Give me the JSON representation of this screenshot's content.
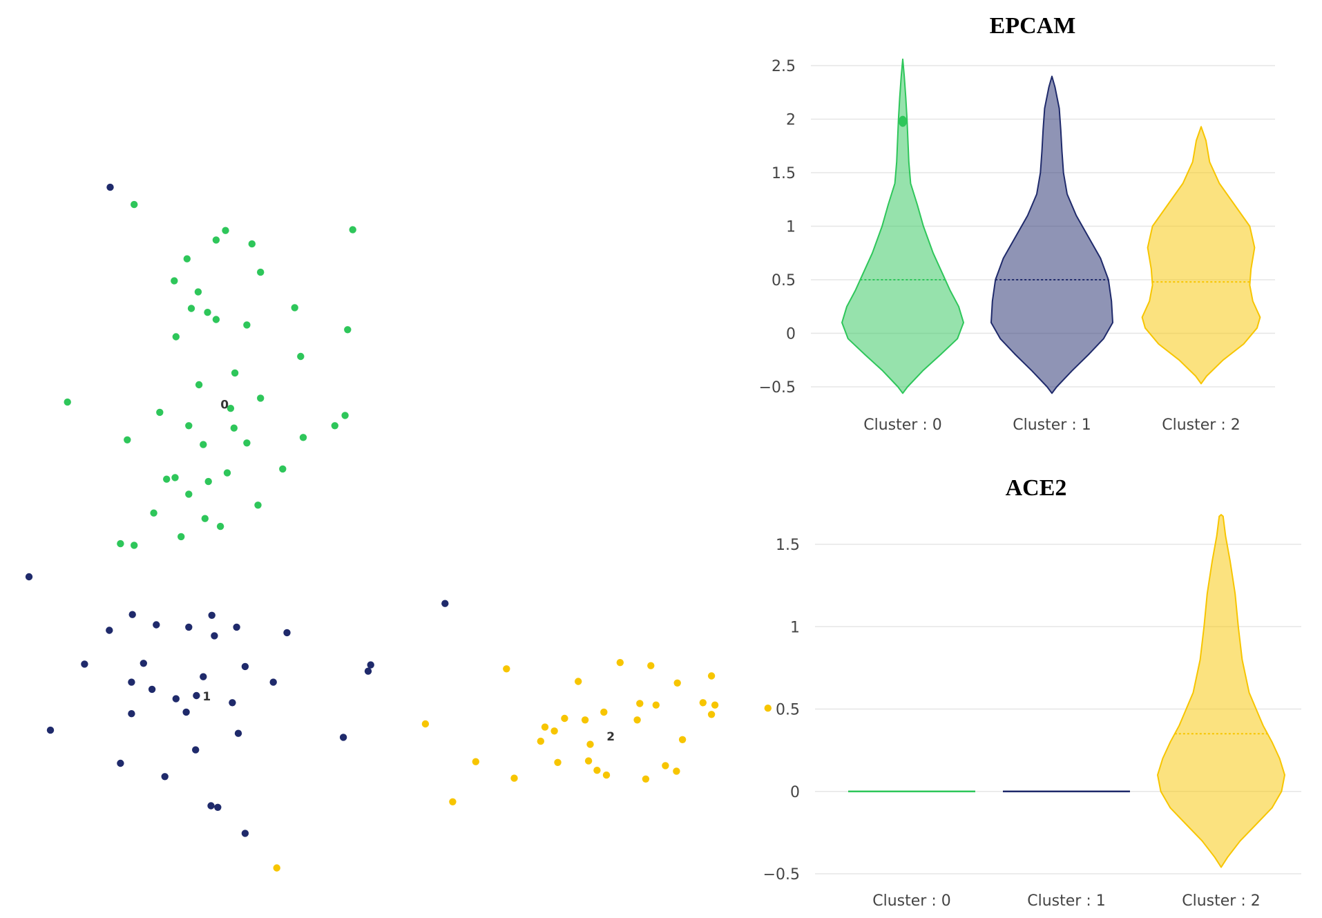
{
  "chart_data": [
    {
      "type": "scatter",
      "title": "",
      "xlabel": "",
      "ylabel": "",
      "grid": false,
      "xlim": [
        0,
        900
      ],
      "ylim": [
        0,
        1020
      ],
      "colors": {
        "0": "#2ec65a",
        "1": "#1f2a6b",
        "2": "#f7c500"
      },
      "cluster_labels": [
        {
          "text": "0",
          "x": 263,
          "y": 607
        },
        {
          "text": "1",
          "x": 242,
          "y": 236
        },
        {
          "text": "2",
          "x": 715,
          "y": 185
        }
      ],
      "series": [
        {
          "cluster": "0",
          "points": [
            [
              157,
              861
            ],
            [
              264,
              828
            ],
            [
              413,
              829
            ],
            [
              253,
              816
            ],
            [
              295,
              811
            ],
            [
              219,
              792
            ],
            [
              305,
              775
            ],
            [
              204,
              764
            ],
            [
              232,
              750
            ],
            [
              224,
              729
            ],
            [
              243,
              724
            ],
            [
              253,
              715
            ],
            [
              345,
              730
            ],
            [
              289,
              708
            ],
            [
              206,
              693
            ],
            [
              407,
              702
            ],
            [
              352,
              668
            ],
            [
              275,
              647
            ],
            [
              233,
              632
            ],
            [
              305,
              615
            ],
            [
              79,
              610
            ],
            [
              270,
              602
            ],
            [
              187,
              597
            ],
            [
              404,
              593
            ],
            [
              221,
              580
            ],
            [
              274,
              577
            ],
            [
              392,
              580
            ],
            [
              149,
              562
            ],
            [
              355,
              565
            ],
            [
              238,
              556
            ],
            [
              289,
              558
            ],
            [
              331,
              525
            ],
            [
              266,
              520
            ],
            [
              195,
              512
            ],
            [
              205,
              514
            ],
            [
              244,
              509
            ],
            [
              221,
              493
            ],
            [
              302,
              479
            ],
            [
              180,
              469
            ],
            [
              240,
              462
            ],
            [
              258,
              452
            ],
            [
              212,
              439
            ],
            [
              141,
              430
            ],
            [
              157,
              428
            ]
          ]
        },
        {
          "cluster": "1",
          "points": [
            [
              129,
              883
            ],
            [
              34,
              388
            ],
            [
              521,
              354
            ],
            [
              155,
              340
            ],
            [
              248,
              339
            ],
            [
              183,
              327
            ],
            [
              221,
              324
            ],
            [
              277,
              324
            ],
            [
              128,
              320
            ],
            [
              336,
              317
            ],
            [
              251,
              313
            ],
            [
              99,
              277
            ],
            [
              168,
              278
            ],
            [
              287,
              274
            ],
            [
              434,
              276
            ],
            [
              431,
              268
            ],
            [
              238,
              261
            ],
            [
              320,
              254
            ],
            [
              154,
              254
            ],
            [
              178,
              245
            ],
            [
              206,
              233
            ],
            [
              230,
              237
            ],
            [
              272,
              228
            ],
            [
              218,
              216
            ],
            [
              154,
              214
            ],
            [
              59,
              193
            ],
            [
              279,
              189
            ],
            [
              402,
              184
            ],
            [
              229,
              168
            ],
            [
              141,
              151
            ],
            [
              193,
              134
            ],
            [
              247,
              97
            ],
            [
              255,
              95
            ],
            [
              287,
              62
            ]
          ]
        },
        {
          "cluster": "2",
          "points": [
            [
              593,
              271
            ],
            [
              726,
              279
            ],
            [
              762,
              275
            ],
            [
              833,
              262
            ],
            [
              677,
              255
            ],
            [
              793,
              253
            ],
            [
              749,
              227
            ],
            [
              768,
              225
            ],
            [
              823,
              228
            ],
            [
              837,
              225
            ],
            [
              899,
              221
            ],
            [
              707,
              216
            ],
            [
              833,
              213
            ],
            [
              661,
              208
            ],
            [
              685,
              206
            ],
            [
              746,
              206
            ],
            [
              498,
              201
            ],
            [
              638,
              197
            ],
            [
              649,
              192
            ],
            [
              799,
              181
            ],
            [
              633,
              179
            ],
            [
              691,
              175
            ],
            [
              557,
              153
            ],
            [
              653,
              152
            ],
            [
              689,
              154
            ],
            [
              779,
              148
            ],
            [
              699,
              142
            ],
            [
              792,
              141
            ],
            [
              710,
              136
            ],
            [
              756,
              131
            ],
            [
              602,
              132
            ],
            [
              530,
              102
            ],
            [
              324,
              18
            ]
          ]
        }
      ]
    },
    {
      "type": "violin",
      "title": "EPCAM",
      "xlabel": "",
      "ylabel": "",
      "ylim": [
        -0.5,
        2.5
      ],
      "grid": true,
      "y_ticks": [
        {
          "value": 2.5,
          "label": "2.5"
        },
        {
          "value": 2,
          "label": "2"
        },
        {
          "value": 1.5,
          "label": "1.5"
        },
        {
          "value": 1,
          "label": "1"
        },
        {
          "value": 0.5,
          "label": "0.5"
        },
        {
          "value": 0,
          "label": "0"
        },
        {
          "value": -0.5,
          "label": "−0.5"
        }
      ],
      "categories": [
        "Cluster : 0",
        "Cluster : 1",
        "Cluster : 2"
      ],
      "series": [
        {
          "color": "#2ec65a",
          "fill": "rgba(46,198,90,0.5)",
          "mean": 0.5,
          "outliers": [
            1.98
          ],
          "profile": [
            [
              -0.56,
              0
            ],
            [
              -0.5,
              0.08
            ],
            [
              -0.35,
              0.33
            ],
            [
              -0.2,
              0.62
            ],
            [
              -0.05,
              0.9
            ],
            [
              0.1,
              1
            ],
            [
              0.25,
              0.92
            ],
            [
              0.4,
              0.78
            ],
            [
              0.55,
              0.66
            ],
            [
              0.75,
              0.5
            ],
            [
              1.0,
              0.34
            ],
            [
              1.2,
              0.24
            ],
            [
              1.4,
              0.13
            ],
            [
              1.6,
              0.1
            ],
            [
              1.8,
              0.085
            ],
            [
              2.0,
              0.07
            ],
            [
              2.2,
              0.05
            ],
            [
              2.4,
              0.025
            ],
            [
              2.56,
              0
            ]
          ]
        },
        {
          "color": "#1f2a6b",
          "fill": "rgba(31,42,107,0.5)",
          "mean": 0.5,
          "outliers": [],
          "profile": [
            [
              -0.56,
              0
            ],
            [
              -0.5,
              0.08
            ],
            [
              -0.35,
              0.33
            ],
            [
              -0.2,
              0.6
            ],
            [
              -0.05,
              0.85
            ],
            [
              0.1,
              1
            ],
            [
              0.3,
              0.98
            ],
            [
              0.5,
              0.93
            ],
            [
              0.7,
              0.8
            ],
            [
              0.9,
              0.6
            ],
            [
              1.1,
              0.4
            ],
            [
              1.3,
              0.25
            ],
            [
              1.5,
              0.19
            ],
            [
              1.7,
              0.165
            ],
            [
              1.9,
              0.145
            ],
            [
              2.1,
              0.12
            ],
            [
              2.3,
              0.05
            ],
            [
              2.4,
              0
            ]
          ]
        },
        {
          "color": "#f7c500",
          "fill": "rgba(247,197,0,0.5)",
          "mean": 0.48,
          "outliers": [],
          "profile": [
            [
              -0.47,
              0
            ],
            [
              -0.4,
              0.09
            ],
            [
              -0.25,
              0.36
            ],
            [
              -0.1,
              0.7
            ],
            [
              0.05,
              0.92
            ],
            [
              0.15,
              0.97
            ],
            [
              0.3,
              0.85
            ],
            [
              0.45,
              0.8
            ],
            [
              0.6,
              0.82
            ],
            [
              0.8,
              0.88
            ],
            [
              1.0,
              0.8
            ],
            [
              1.2,
              0.55
            ],
            [
              1.4,
              0.3
            ],
            [
              1.6,
              0.14
            ],
            [
              1.8,
              0.08
            ],
            [
              1.93,
              0
            ]
          ]
        }
      ]
    },
    {
      "type": "violin",
      "title": "ACE2",
      "xlabel": "",
      "ylabel": "",
      "ylim": [
        -0.5,
        1.5
      ],
      "grid": true,
      "y_ticks": [
        {
          "value": 1.5,
          "label": "1.5"
        },
        {
          "value": 1,
          "label": "1"
        },
        {
          "value": 0.5,
          "label": "0.5"
        },
        {
          "value": 0,
          "label": "0"
        },
        {
          "value": -0.5,
          "label": "−0.5"
        }
      ],
      "categories": [
        "Cluster : 0",
        "Cluster : 1",
        "Cluster : 2"
      ],
      "series": [
        {
          "color": "#2ec65a",
          "fill": "rgba(46,198,90,0.5)",
          "mean": 0,
          "flat_value": 0,
          "outliers": [],
          "profile": []
        },
        {
          "color": "#1f2a6b",
          "fill": "rgba(31,42,107,0.5)",
          "mean": 0,
          "flat_value": 0,
          "outliers": [],
          "profile": []
        },
        {
          "color": "#f7c500",
          "fill": "rgba(247,197,0,0.5)",
          "mean": 0.35,
          "outliers": [],
          "profile": [
            [
              -0.46,
              0
            ],
            [
              -0.4,
              0.1
            ],
            [
              -0.3,
              0.3
            ],
            [
              -0.2,
              0.55
            ],
            [
              -0.1,
              0.8
            ],
            [
              0.0,
              0.95
            ],
            [
              0.1,
              1
            ],
            [
              0.2,
              0.92
            ],
            [
              0.3,
              0.8
            ],
            [
              0.4,
              0.66
            ],
            [
              0.5,
              0.55
            ],
            [
              0.6,
              0.44
            ],
            [
              0.8,
              0.33
            ],
            [
              1.0,
              0.27
            ],
            [
              1.2,
              0.22
            ],
            [
              1.4,
              0.14
            ],
            [
              1.55,
              0.07
            ],
            [
              1.67,
              0.03
            ],
            [
              1.68,
              0
            ]
          ]
        }
      ]
    }
  ]
}
